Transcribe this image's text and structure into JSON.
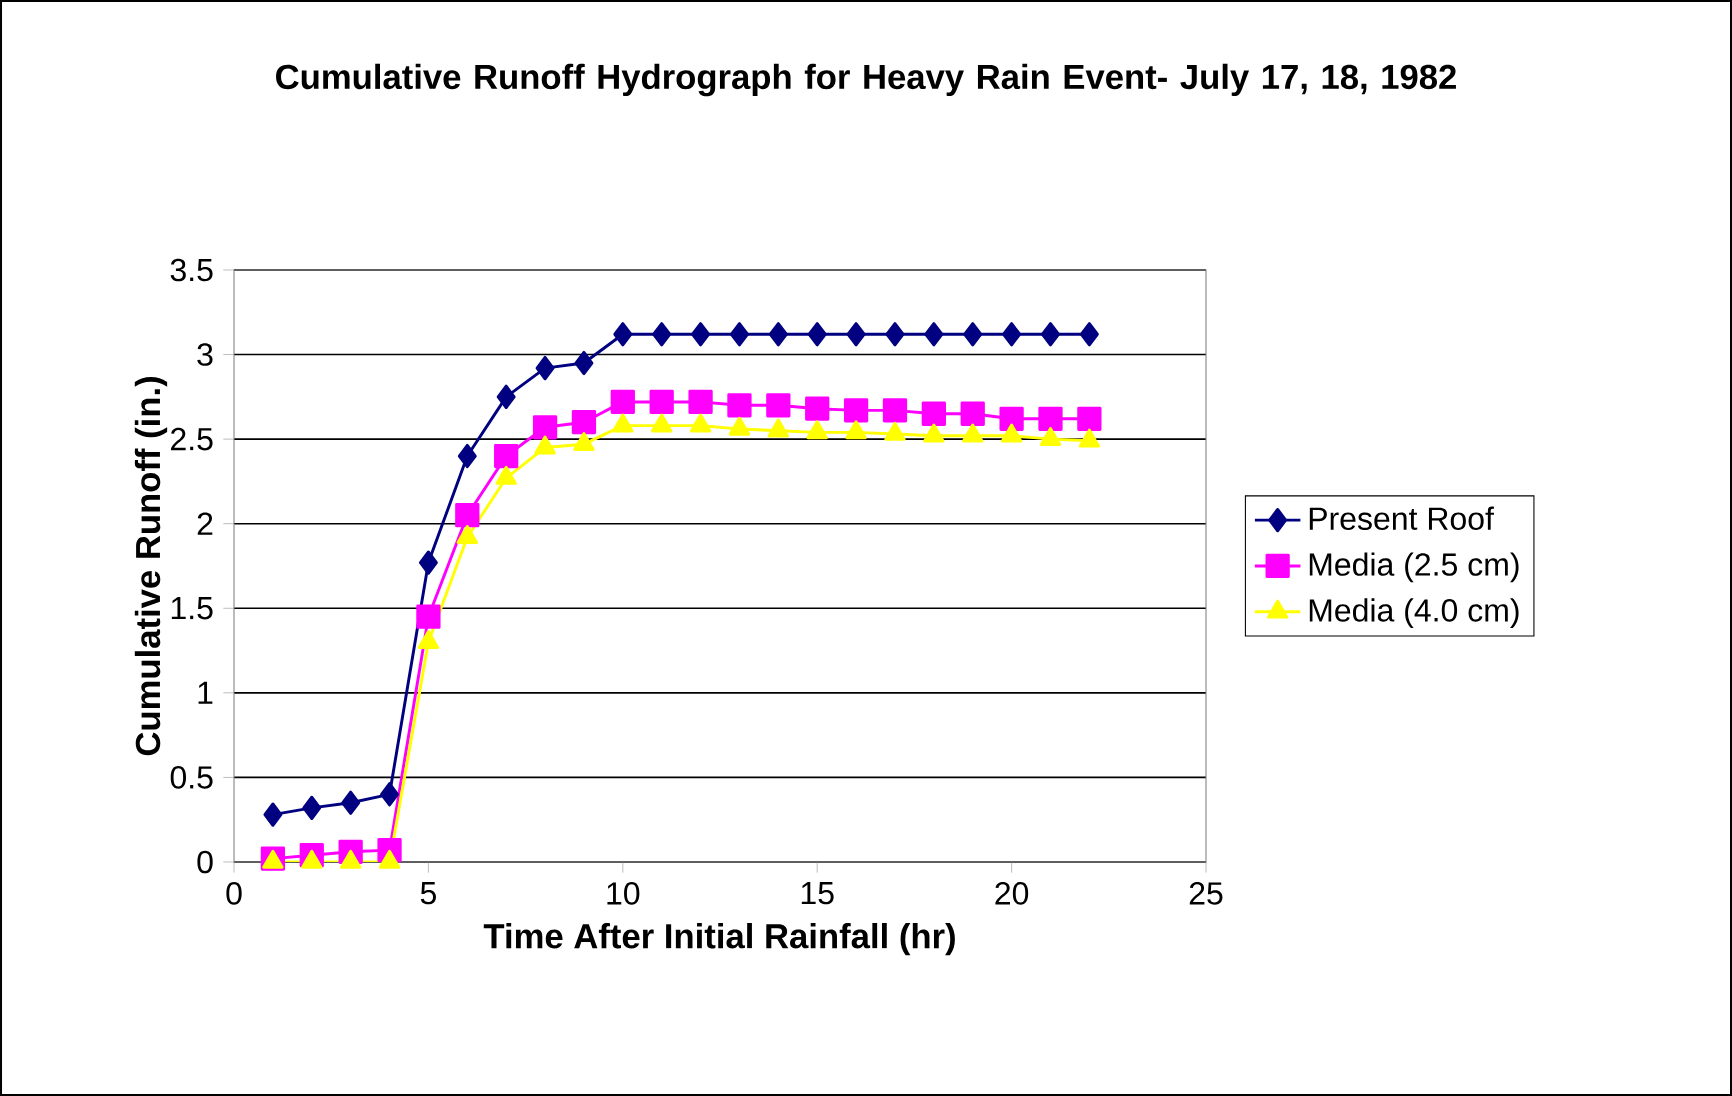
{
  "chart_data": {
    "type": "line",
    "title": "Cumulative Runoff Hydrograph for Heavy Rain Event- July 17, 18, 1982",
    "xlabel": "Time After Initial Rainfall (hr)",
    "ylabel": "Cumulative Runoff (in.)",
    "x": [
      1,
      2,
      3,
      4,
      5,
      6,
      7,
      8,
      9,
      10,
      11,
      12,
      13,
      14,
      15,
      16,
      17,
      18,
      19,
      20,
      21,
      22
    ],
    "series": [
      {
        "name": "Present Roof",
        "color": "#000080",
        "marker": "diamond",
        "values": [
          0.28,
          0.32,
          0.35,
          0.4,
          1.77,
          2.4,
          2.75,
          2.92,
          2.95,
          3.12,
          3.12,
          3.12,
          3.12,
          3.12,
          3.12,
          3.12,
          3.12,
          3.12,
          3.12,
          3.12,
          3.12,
          3.12
        ]
      },
      {
        "name": "Media (2.5 cm)",
        "color": "#ff00ff",
        "marker": "square",
        "values": [
          0.02,
          0.04,
          0.06,
          0.07,
          1.45,
          2.05,
          2.4,
          2.57,
          2.6,
          2.72,
          2.72,
          2.72,
          2.7,
          2.7,
          2.68,
          2.67,
          2.67,
          2.65,
          2.65,
          2.62,
          2.62,
          2.62
        ]
      },
      {
        "name": "Media (4.0 cm)",
        "color": "#ffff00",
        "marker": "triangle",
        "values": [
          0,
          0,
          0,
          0,
          1.3,
          1.92,
          2.27,
          2.45,
          2.47,
          2.58,
          2.58,
          2.58,
          2.56,
          2.55,
          2.54,
          2.54,
          2.53,
          2.52,
          2.52,
          2.52,
          2.5,
          2.49
        ]
      }
    ],
    "xlim": [
      0,
      25
    ],
    "xticks": [
      0,
      5,
      10,
      15,
      20,
      25
    ],
    "ylim": [
      0,
      3.5
    ],
    "yticks": [
      0,
      0.5,
      1,
      1.5,
      2,
      2.5,
      3,
      3.5
    ],
    "grid": "y",
    "legend": "right"
  }
}
